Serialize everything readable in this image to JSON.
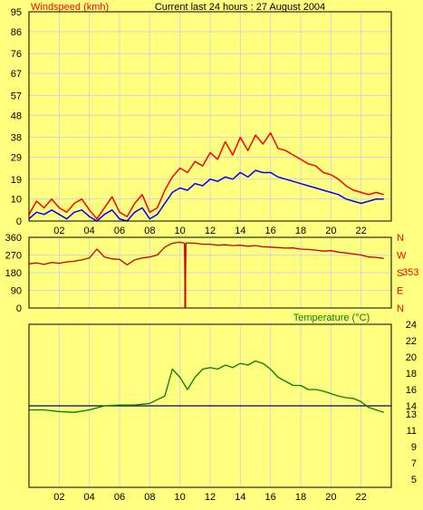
{
  "colors": {
    "background": "#ffff80",
    "plot_border": "#000000",
    "grid": "#d4d4d4",
    "wind_max": "#ff0000",
    "wind_avg": "#0000ff",
    "direction": "#cc0000",
    "temperature": "#008000",
    "temp_ref": "#000080",
    "title_text": "#000000"
  },
  "header": {
    "title": "Current last 24 hours : 27 August 2004"
  },
  "chart_data": [
    {
      "type": "line",
      "title": "Windspeed (kmh)",
      "xlabel": "",
      "ylabel": "",
      "xlim": [
        0,
        24
      ],
      "ylim": [
        0,
        95
      ],
      "grid": true,
      "x_ticks": [
        "02",
        "04",
        "06",
        "08",
        "10",
        "12",
        "14",
        "16",
        "18",
        "20",
        "22"
      ],
      "y_ticks": [
        "0",
        "10",
        "19",
        "29",
        "38",
        "48",
        "57",
        "67",
        "76",
        "86",
        "95"
      ],
      "series": [
        {
          "name": "Windspeed (kmh)",
          "points": [
            [
              0,
              3
            ],
            [
              0.5,
              9
            ],
            [
              1,
              6
            ],
            [
              1.5,
              10
            ],
            [
              2,
              6
            ],
            [
              2.5,
              4
            ],
            [
              3,
              8
            ],
            [
              3.5,
              10
            ],
            [
              4,
              5
            ],
            [
              4.5,
              1
            ],
            [
              5,
              6
            ],
            [
              5.5,
              11
            ],
            [
              6,
              4
            ],
            [
              6.5,
              2
            ],
            [
              7,
              8
            ],
            [
              7.5,
              12
            ],
            [
              8,
              4
            ],
            [
              8.5,
              6
            ],
            [
              9,
              14
            ],
            [
              9.5,
              20
            ],
            [
              10,
              24
            ],
            [
              10.5,
              22
            ],
            [
              11,
              27
            ],
            [
              11.5,
              25
            ],
            [
              12,
              31
            ],
            [
              12.5,
              28
            ],
            [
              13,
              36
            ],
            [
              13.5,
              30
            ],
            [
              14,
              38
            ],
            [
              14.5,
              32
            ],
            [
              15,
              39
            ],
            [
              15.5,
              35
            ],
            [
              16,
              40
            ],
            [
              16.5,
              33
            ],
            [
              17,
              32
            ],
            [
              17.5,
              30
            ],
            [
              18,
              28
            ],
            [
              18.5,
              26
            ],
            [
              19,
              25
            ],
            [
              19.5,
              22
            ],
            [
              20,
              21
            ],
            [
              20.5,
              19
            ],
            [
              21,
              16
            ],
            [
              21.5,
              14
            ],
            [
              22,
              13
            ],
            [
              22.5,
              12
            ],
            [
              23,
              13
            ],
            [
              23.5,
              12
            ]
          ]
        },
        {
          "name": "",
          "points": [
            [
              0,
              1
            ],
            [
              0.5,
              4
            ],
            [
              1,
              3
            ],
            [
              1.5,
              5
            ],
            [
              2,
              3
            ],
            [
              2.5,
              1
            ],
            [
              3,
              4
            ],
            [
              3.5,
              5
            ],
            [
              4,
              2
            ],
            [
              4.5,
              0
            ],
            [
              5,
              3
            ],
            [
              5.5,
              5
            ],
            [
              6,
              1
            ],
            [
              6.5,
              0
            ],
            [
              7,
              4
            ],
            [
              7.5,
              6
            ],
            [
              8,
              1
            ],
            [
              8.5,
              3
            ],
            [
              9,
              8
            ],
            [
              9.5,
              13
            ],
            [
              10,
              15
            ],
            [
              10.5,
              14
            ],
            [
              11,
              17
            ],
            [
              11.5,
              16
            ],
            [
              12,
              19
            ],
            [
              12.5,
              18
            ],
            [
              13,
              20
            ],
            [
              13.5,
              19
            ],
            [
              14,
              22
            ],
            [
              14.5,
              20
            ],
            [
              15,
              23
            ],
            [
              15.5,
              22
            ],
            [
              16,
              22
            ],
            [
              16.5,
              20
            ],
            [
              17,
              19
            ],
            [
              17.5,
              18
            ],
            [
              18,
              17
            ],
            [
              18.5,
              16
            ],
            [
              19,
              15
            ],
            [
              19.5,
              14
            ],
            [
              20,
              13
            ],
            [
              20.5,
              12
            ],
            [
              21,
              10
            ],
            [
              21.5,
              9
            ],
            [
              22,
              8
            ],
            [
              22.5,
              9
            ],
            [
              23,
              10
            ],
            [
              23.5,
              10
            ]
          ]
        }
      ]
    },
    {
      "type": "line",
      "title": "",
      "xlabel": "",
      "ylabel": "",
      "xlim": [
        0,
        24
      ],
      "ylim": [
        0,
        360
      ],
      "grid": true,
      "y_ticks": [
        "0",
        "90",
        "180",
        "270",
        "360"
      ],
      "right_labels": [
        "N",
        "W",
        "S",
        "E",
        "N"
      ],
      "current_value": "353",
      "series": [
        {
          "name": "",
          "points": [
            [
              0,
              225
            ],
            [
              0.5,
              230
            ],
            [
              1,
              222
            ],
            [
              1.5,
              232
            ],
            [
              2,
              228
            ],
            [
              2.5,
              235
            ],
            [
              3,
              238
            ],
            [
              3.5,
              245
            ],
            [
              4,
              255
            ],
            [
              4.5,
              300
            ],
            [
              5,
              260
            ],
            [
              5.5,
              250
            ],
            [
              6,
              248
            ],
            [
              6.5,
              220
            ],
            [
              7,
              245
            ],
            [
              7.5,
              255
            ],
            [
              8,
              260
            ],
            [
              8.5,
              270
            ],
            [
              9,
              310
            ],
            [
              9.5,
              330
            ],
            [
              10,
              335
            ],
            [
              10.3,
              330
            ],
            [
              10.35,
              0
            ],
            [
              10.4,
              330
            ],
            [
              10.5,
              332
            ],
            [
              11,
              330
            ],
            [
              11.5,
              325
            ],
            [
              12,
              325
            ],
            [
              12.5,
              320
            ],
            [
              13,
              322
            ],
            [
              13.5,
              318
            ],
            [
              14,
              320
            ],
            [
              14.5,
              315
            ],
            [
              15,
              318
            ],
            [
              15.5,
              312
            ],
            [
              16,
              310
            ],
            [
              16.5,
              308
            ],
            [
              17,
              305
            ],
            [
              17.5,
              306
            ],
            [
              18,
              300
            ],
            [
              18.5,
              298
            ],
            [
              19,
              295
            ],
            [
              19.5,
              290
            ],
            [
              20,
              292
            ],
            [
              20.5,
              285
            ],
            [
              21,
              280
            ],
            [
              21.5,
              275
            ],
            [
              22,
              270
            ],
            [
              22.5,
              260
            ],
            [
              23,
              258
            ],
            [
              23.5,
              252
            ]
          ]
        }
      ]
    },
    {
      "type": "line",
      "title": "Temperature (°C)",
      "xlabel": "",
      "ylabel": "",
      "xlim": [
        0,
        24
      ],
      "ylim": [
        4,
        24
      ],
      "grid": true,
      "x_ticks": [
        "02",
        "04",
        "06",
        "08",
        "10",
        "12",
        "14",
        "16",
        "18",
        "20",
        "22"
      ],
      "y_ticks": [
        "5",
        "7",
        "9",
        "11",
        "13",
        "14",
        "16",
        "18",
        "20",
        "22",
        "24"
      ],
      "reference_line": 14.0,
      "series": [
        {
          "name": "Temperature (°C)",
          "points": [
            [
              0,
              13.5
            ],
            [
              1,
              13.5
            ],
            [
              2,
              13.3
            ],
            [
              3,
              13.2
            ],
            [
              4,
              13.5
            ],
            [
              5,
              14.0
            ],
            [
              6,
              14.1
            ],
            [
              7,
              14.1
            ],
            [
              8,
              14.3
            ],
            [
              9,
              15.2
            ],
            [
              9.5,
              18.5
            ],
            [
              10,
              17.5
            ],
            [
              10.5,
              16.0
            ],
            [
              11,
              17.5
            ],
            [
              11.5,
              18.5
            ],
            [
              12,
              18.7
            ],
            [
              12.5,
              18.5
            ],
            [
              13,
              19.0
            ],
            [
              13.5,
              18.7
            ],
            [
              14,
              19.2
            ],
            [
              14.5,
              19.0
            ],
            [
              15,
              19.5
            ],
            [
              15.5,
              19.2
            ],
            [
              16,
              18.5
            ],
            [
              16.5,
              17.5
            ],
            [
              17,
              17.0
            ],
            [
              17.5,
              16.5
            ],
            [
              18,
              16.5
            ],
            [
              18.5,
              16.0
            ],
            [
              19,
              16.0
            ],
            [
              19.5,
              15.8
            ],
            [
              20,
              15.5
            ],
            [
              20.5,
              15.2
            ],
            [
              21,
              15.0
            ],
            [
              21.5,
              14.9
            ],
            [
              22,
              14.5
            ],
            [
              22.5,
              13.8
            ],
            [
              23,
              13.5
            ],
            [
              23.5,
              13.2
            ]
          ]
        }
      ]
    }
  ]
}
